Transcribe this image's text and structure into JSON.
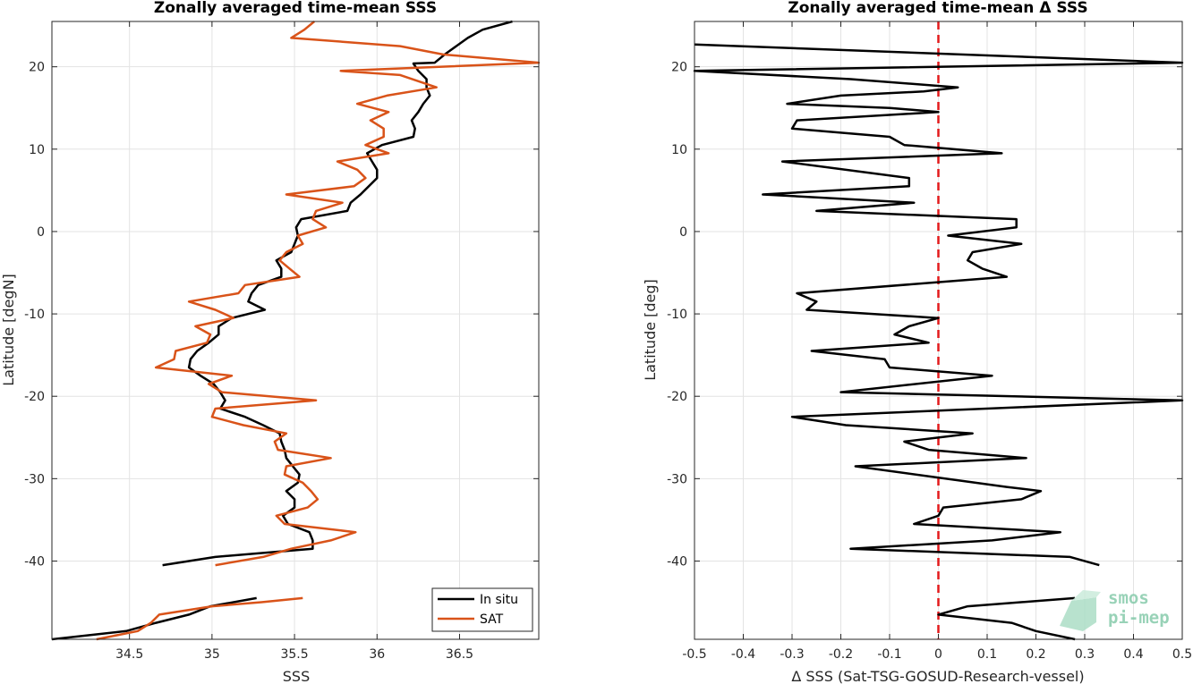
{
  "chart_data": [
    {
      "type": "line",
      "title": "Zonally averaged time-mean SSS",
      "xlabel": "SSS",
      "ylabel": "Latitude [degN]",
      "xlim": [
        34.03,
        36.98
      ],
      "ylim": [
        -49.5,
        25.5
      ],
      "xticks": [
        34.5,
        35,
        35.5,
        36,
        36.5
      ],
      "xticklabels": [
        "34.5",
        "35",
        "35.5",
        "36",
        "36.5"
      ],
      "yticks": [
        -40,
        -30,
        -20,
        -10,
        0,
        10,
        20
      ],
      "yticklabels": [
        "-40",
        "-30",
        "-20",
        "-10",
        "0",
        "10",
        "20"
      ],
      "grid": true,
      "legend_position": "bottom-right",
      "series": [
        {
          "name": "In situ",
          "color": "#000000",
          "segments": [
            [
              [
                36.82,
                25.5
              ],
              [
                36.64,
                24.5
              ],
              [
                36.55,
                23.5
              ],
              [
                36.48,
                22.5
              ],
              [
                36.41,
                21.5
              ],
              [
                36.35,
                20.5
              ],
              [
                36.22,
                20.4
              ],
              [
                36.25,
                19.5
              ],
              [
                36.3,
                18.5
              ],
              [
                36.3,
                17.5
              ],
              [
                36.32,
                16.5
              ],
              [
                36.28,
                15.5
              ],
              [
                36.25,
                14.5
              ],
              [
                36.21,
                13.5
              ],
              [
                36.23,
                12.5
              ],
              [
                36.22,
                11.5
              ],
              [
                36.03,
                10.5
              ],
              [
                35.94,
                9.5
              ],
              [
                35.97,
                8.5
              ],
              [
                36.0,
                7.5
              ],
              [
                36.0,
                6.5
              ],
              [
                35.95,
                5.5
              ],
              [
                35.9,
                4.5
              ],
              [
                35.84,
                3.5
              ],
              [
                35.82,
                2.5
              ],
              [
                35.54,
                1.5
              ],
              [
                35.51,
                0.5
              ],
              [
                35.52,
                -0.5
              ],
              [
                35.5,
                -1.5
              ],
              [
                35.48,
                -2.5
              ],
              [
                35.39,
                -3.5
              ],
              [
                35.42,
                -4.5
              ],
              [
                35.42,
                -5.5
              ],
              [
                35.28,
                -6.5
              ],
              [
                35.24,
                -7.5
              ],
              [
                35.22,
                -8.5
              ],
              [
                35.32,
                -9.5
              ],
              [
                35.12,
                -10.5
              ],
              [
                35.04,
                -11.5
              ],
              [
                35.04,
                -12.5
              ],
              [
                34.98,
                -13.5
              ],
              [
                34.91,
                -14.5
              ],
              [
                34.87,
                -15.5
              ],
              [
                34.86,
                -16.5
              ],
              [
                34.93,
                -17.5
              ],
              [
                35.01,
                -18.5
              ],
              [
                35.05,
                -19.5
              ],
              [
                35.08,
                -20.5
              ],
              [
                35.05,
                -21.5
              ],
              [
                35.2,
                -22.5
              ],
              [
                35.31,
                -23.5
              ],
              [
                35.41,
                -24.5
              ],
              [
                35.42,
                -25.5
              ],
              [
                35.44,
                -26.5
              ],
              [
                35.45,
                -27.5
              ],
              [
                35.49,
                -28.5
              ],
              [
                35.53,
                -29.5
              ],
              [
                35.52,
                -30.5
              ],
              [
                35.45,
                -31.5
              ],
              [
                35.5,
                -32.5
              ],
              [
                35.5,
                -33.5
              ],
              [
                35.43,
                -34.5
              ],
              [
                35.46,
                -35.5
              ],
              [
                35.59,
                -36.5
              ],
              [
                35.61,
                -37.5
              ],
              [
                35.61,
                -38.5
              ],
              [
                35.02,
                -39.5
              ],
              [
                34.7,
                -40.5
              ]
            ],
            [
              [
                35.27,
                -44.5
              ],
              [
                34.99,
                -45.5
              ],
              [
                34.86,
                -46.5
              ],
              [
                34.66,
                -47.5
              ],
              [
                34.48,
                -48.5
              ],
              [
                34.03,
                -49.5
              ]
            ]
          ]
        },
        {
          "name": "SAT",
          "color": "#d95319",
          "segments": [
            [
              [
                35.62,
                25.5
              ],
              [
                35.56,
                24.5
              ],
              [
                35.48,
                23.5
              ],
              [
                36.14,
                22.5
              ],
              [
                36.4,
                21.5
              ],
              [
                36.98,
                20.5
              ],
              [
                35.78,
                19.5
              ],
              [
                36.14,
                19.0
              ],
              [
                36.36,
                17.5
              ],
              [
                36.06,
                16.5
              ],
              [
                35.88,
                15.5
              ],
              [
                36.07,
                14.5
              ],
              [
                35.96,
                13.5
              ],
              [
                36.04,
                12.5
              ],
              [
                36.04,
                11.5
              ],
              [
                35.93,
                10.5
              ],
              [
                36.07,
                9.5
              ],
              [
                35.76,
                8.5
              ],
              [
                35.88,
                7.5
              ],
              [
                35.93,
                6.5
              ],
              [
                35.86,
                5.5
              ],
              [
                35.45,
                4.5
              ],
              [
                35.79,
                3.5
              ],
              [
                35.63,
                2.5
              ],
              [
                35.61,
                1.5
              ],
              [
                35.69,
                0.5
              ],
              [
                35.52,
                -0.5
              ],
              [
                35.55,
                -1.5
              ],
              [
                35.45,
                -2.5
              ],
              [
                35.41,
                -3.5
              ],
              [
                35.47,
                -4.5
              ],
              [
                35.53,
                -5.5
              ],
              [
                35.2,
                -6.5
              ],
              [
                35.16,
                -7.5
              ],
              [
                34.86,
                -8.5
              ],
              [
                35.02,
                -9.5
              ],
              [
                35.13,
                -10.5
              ],
              [
                34.9,
                -11.5
              ],
              [
                34.99,
                -12.5
              ],
              [
                34.97,
                -13.5
              ],
              [
                34.78,
                -14.5
              ],
              [
                34.77,
                -15.5
              ],
              [
                34.66,
                -16.5
              ],
              [
                35.12,
                -17.5
              ],
              [
                34.98,
                -18.5
              ],
              [
                35.06,
                -19.5
              ],
              [
                35.63,
                -20.5
              ],
              [
                35.02,
                -21.5
              ],
              [
                35.0,
                -22.5
              ],
              [
                35.19,
                -23.5
              ],
              [
                35.45,
                -24.5
              ],
              [
                35.38,
                -25.5
              ],
              [
                35.4,
                -26.5
              ],
              [
                35.72,
                -27.5
              ],
              [
                35.45,
                -28.5
              ],
              [
                35.44,
                -29.5
              ],
              [
                35.55,
                -30.5
              ],
              [
                35.6,
                -31.5
              ],
              [
                35.64,
                -32.5
              ],
              [
                35.58,
                -33.5
              ],
              [
                35.39,
                -34.5
              ],
              [
                35.44,
                -35.5
              ],
              [
                35.87,
                -36.5
              ],
              [
                35.72,
                -37.5
              ],
              [
                35.48,
                -38.5
              ],
              [
                35.31,
                -39.5
              ],
              [
                35.02,
                -40.5
              ]
            ],
            [
              [
                35.55,
                -44.5
              ],
              [
                35.3,
                -45.0
              ],
              [
                35.0,
                -45.5
              ],
              [
                34.68,
                -46.5
              ],
              [
                34.63,
                -47.5
              ],
              [
                34.55,
                -48.5
              ],
              [
                34.3,
                -49.5
              ]
            ]
          ]
        }
      ]
    },
    {
      "type": "line",
      "title": "Zonally averaged time-mean Δ SSS",
      "xlabel": "Δ SSS (Sat-TSG-GOSUD-Research-vessel)",
      "ylabel": "Latitude [deg]",
      "xlim": [
        -0.5,
        0.5
      ],
      "ylim": [
        -49.5,
        25.5
      ],
      "xticks": [
        -0.5,
        -0.4,
        -0.3,
        -0.2,
        -0.1,
        0,
        0.1,
        0.2,
        0.3,
        0.4,
        0.5
      ],
      "xticklabels": [
        "-0.5",
        "-0.4",
        "-0.3",
        "-0.2",
        "-0.1",
        "0",
        "0.1",
        "0.2",
        "0.3",
        "0.4",
        "0.5"
      ],
      "yticks": [
        -40,
        -30,
        -20,
        -10,
        0,
        10,
        20
      ],
      "yticklabels": [
        "-40",
        "-30",
        "-20",
        "-10",
        "0",
        "10",
        "20"
      ],
      "grid": true,
      "reference_line": {
        "x": 0,
        "color": "#e41a1c",
        "style": "dashed"
      },
      "series": [
        {
          "color": "#000000",
          "segments": [
            [
              [
                -0.5,
                22.7
              ],
              [
                0.5,
                20.5
              ],
              [
                -0.5,
                19.5
              ],
              [
                -0.18,
                18.5
              ],
              [
                0.04,
                17.5
              ],
              [
                -0.03,
                17.0
              ],
              [
                -0.2,
                16.5
              ],
              [
                -0.31,
                15.5
              ],
              [
                -0.1,
                15.0
              ],
              [
                0.0,
                14.5
              ],
              [
                -0.29,
                13.5
              ],
              [
                -0.3,
                12.5
              ],
              [
                -0.1,
                11.5
              ],
              [
                -0.07,
                10.5
              ],
              [
                0.13,
                9.5
              ],
              [
                -0.32,
                8.5
              ],
              [
                -0.06,
                6.5
              ],
              [
                -0.06,
                5.5
              ],
              [
                -0.36,
                4.5
              ],
              [
                -0.05,
                3.5
              ],
              [
                -0.25,
                2.5
              ],
              [
                0.16,
                1.5
              ],
              [
                0.16,
                0.5
              ],
              [
                0.02,
                -0.5
              ],
              [
                0.17,
                -1.5
              ],
              [
                0.07,
                -2.5
              ],
              [
                0.06,
                -3.5
              ],
              [
                0.09,
                -4.5
              ],
              [
                0.14,
                -5.5
              ],
              [
                -0.29,
                -7.5
              ],
              [
                -0.25,
                -8.5
              ],
              [
                -0.27,
                -9.5
              ],
              [
                0.0,
                -10.5
              ],
              [
                -0.06,
                -11.5
              ],
              [
                -0.09,
                -12.5
              ],
              [
                -0.02,
                -13.5
              ],
              [
                -0.26,
                -14.5
              ],
              [
                -0.11,
                -15.5
              ],
              [
                -0.1,
                -16.5
              ],
              [
                0.11,
                -17.5
              ],
              [
                -0.2,
                -19.5
              ],
              [
                0.5,
                -20.5
              ],
              [
                -0.3,
                -22.5
              ],
              [
                -0.19,
                -23.5
              ],
              [
                0.07,
                -24.5
              ],
              [
                -0.07,
                -25.5
              ],
              [
                -0.02,
                -26.5
              ],
              [
                0.18,
                -27.5
              ],
              [
                -0.17,
                -28.5
              ],
              [
                0.14,
                -31.0
              ],
              [
                0.21,
                -31.5
              ],
              [
                0.17,
                -32.5
              ],
              [
                0.01,
                -33.5
              ],
              [
                0.0,
                -34.5
              ],
              [
                -0.05,
                -35.5
              ],
              [
                0.25,
                -36.5
              ],
              [
                0.11,
                -37.5
              ],
              [
                -0.18,
                -38.5
              ],
              [
                0.27,
                -39.5
              ],
              [
                0.33,
                -40.5
              ]
            ],
            [
              [
                0.28,
                -44.5
              ],
              [
                0.06,
                -45.5
              ],
              [
                0.0,
                -46.5
              ],
              [
                0.15,
                -47.5
              ],
              [
                0.2,
                -48.5
              ],
              [
                0.28,
                -49.5
              ]
            ]
          ]
        }
      ]
    }
  ],
  "legend": {
    "insitu_label": "In situ",
    "sat_label": "SAT"
  },
  "watermark": {
    "line1": "smos",
    "line2": "pi-mep"
  }
}
